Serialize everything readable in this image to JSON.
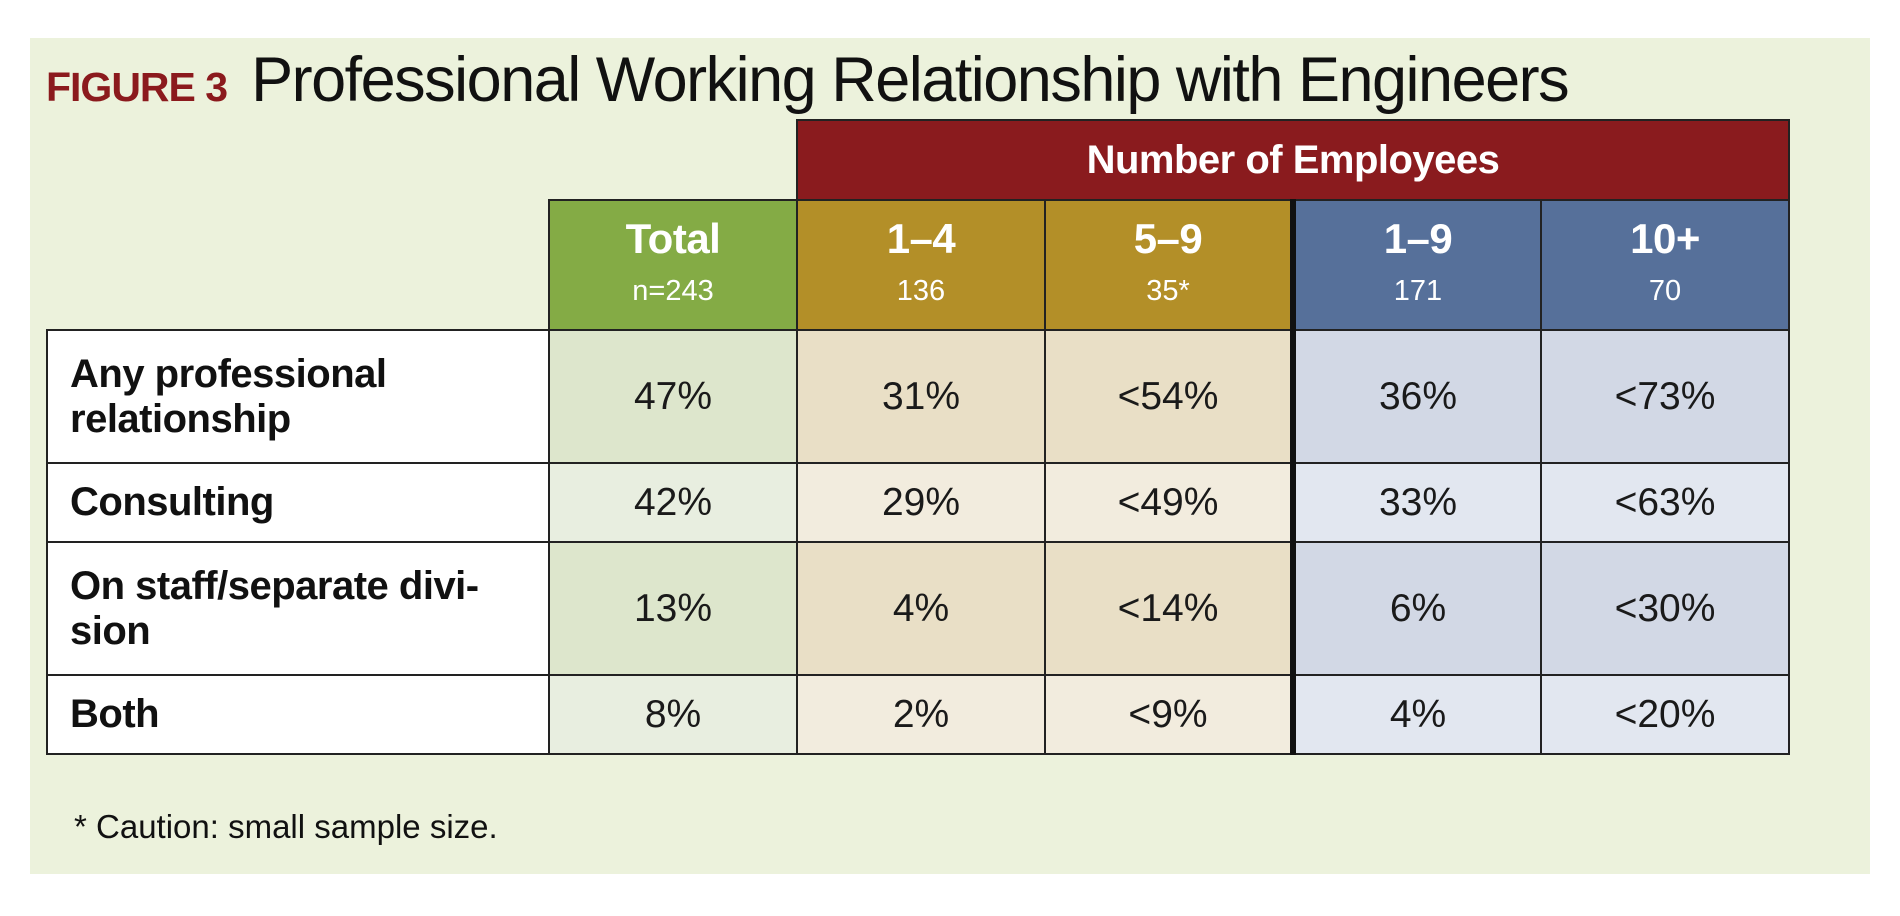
{
  "figure_label": "FIGURE 3",
  "title": "Professional Working Relationship with Engineers",
  "chart_data": {
    "type": "table",
    "group_header": "Number of Employees",
    "columns": [
      {
        "label": "Total",
        "n": "n=243"
      },
      {
        "label": "1–4",
        "n": "136"
      },
      {
        "label": "5–9",
        "n": "35*"
      },
      {
        "label": "1–9",
        "n": "171"
      },
      {
        "label": "10+",
        "n": "70"
      }
    ],
    "rows": [
      {
        "label": "Any professional relationship",
        "values": [
          "47%",
          "31%",
          "<54%",
          "36%",
          "<73%"
        ]
      },
      {
        "label": "Consulting",
        "values": [
          "42%",
          "29%",
          "<49%",
          "33%",
          "<63%"
        ]
      },
      {
        "label": "On staff/separate divi- sion",
        "values": [
          "13%",
          "4%",
          "<14%",
          "6%",
          "<30%"
        ]
      },
      {
        "label": "Both",
        "values": [
          "8%",
          "2%",
          "<9%",
          "4%",
          "<20%"
        ]
      }
    ],
    "colors": {
      "group_header": "#8a1b1e",
      "total": "#84ab45",
      "small": "#b38f28",
      "large": "#56709a"
    }
  },
  "footnote": "* Caution: small sample size."
}
